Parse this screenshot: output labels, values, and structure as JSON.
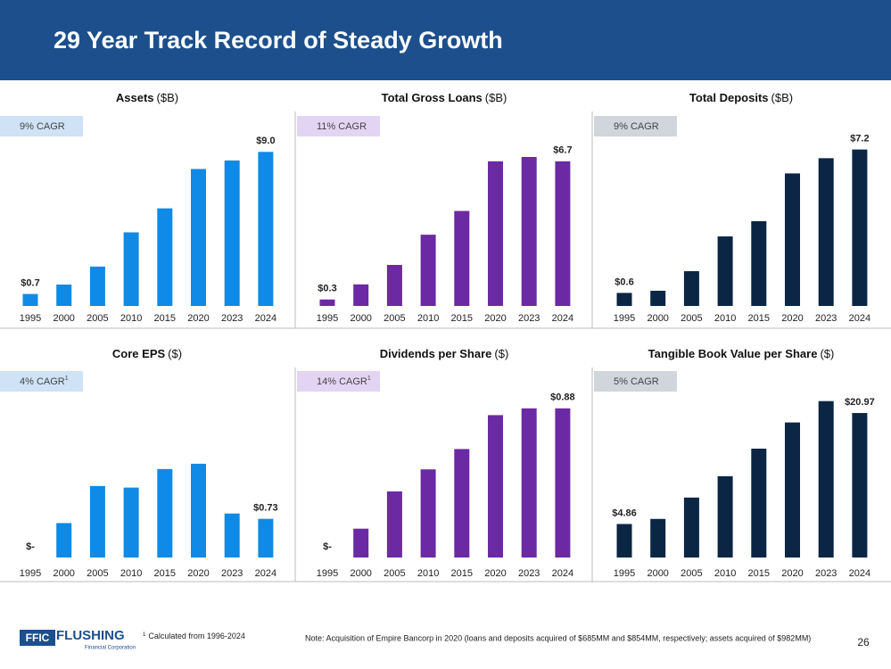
{
  "page": {
    "title": "29 Year Track Record of Steady Growth",
    "logo_mark": "FFIC",
    "logo_name": "FLUSHING",
    "logo_sub": "Financial Corporation",
    "footnote_mark": "1",
    "footnote": "Calculated from 1996-2024",
    "note": "Note: Acquisition of Empire Bancorp in 2020 (loans and deposits acquired of $685MM and $854MM, respectively; assets acquired of $982MM)",
    "page_number": "26"
  },
  "chart_data": [
    {
      "type": "bar",
      "title": "Assets",
      "unit": "($B)",
      "badge": "9% CAGR",
      "badge_color": "#cfe2f6",
      "color": "#0f8ae6",
      "categories": [
        "1995",
        "2000",
        "2005",
        "2010",
        "2015",
        "2020",
        "2023",
        "2024"
      ],
      "values": [
        0.7,
        1.25,
        2.3,
        4.3,
        5.7,
        8.0,
        8.5,
        9.0
      ],
      "value_labels": [
        "$0.7",
        null,
        null,
        null,
        null,
        null,
        null,
        "$9.0"
      ],
      "ylim": [
        0,
        9.9
      ]
    },
    {
      "type": "bar",
      "title": "Total Gross Loans",
      "unit": "($B)",
      "badge": "11% CAGR",
      "badge_color": "#e4d4f4",
      "color": "#6b2aa4",
      "categories": [
        "1995",
        "2000",
        "2005",
        "2010",
        "2015",
        "2020",
        "2023",
        "2024"
      ],
      "values": [
        0.3,
        1.0,
        1.9,
        3.3,
        4.4,
        6.7,
        6.9,
        6.7
      ],
      "value_labels": [
        "$0.3",
        null,
        null,
        null,
        null,
        null,
        null,
        "$6.7"
      ],
      "ylim": [
        0,
        7.85
      ]
    },
    {
      "type": "bar",
      "title": "Total Deposits",
      "unit": "($B)",
      "badge": "9% CAGR",
      "badge_color": "#d0d6dc",
      "color": "#0b2545",
      "categories": [
        "1995",
        "2000",
        "2005",
        "2010",
        "2015",
        "2020",
        "2023",
        "2024"
      ],
      "values": [
        0.6,
        0.7,
        1.6,
        3.2,
        3.9,
        6.1,
        6.8,
        7.2
      ],
      "value_labels": [
        "$0.6",
        null,
        null,
        null,
        null,
        null,
        null,
        "$7.2"
      ],
      "ylim": [
        0,
        7.8
      ]
    },
    {
      "type": "bar",
      "title": "Core EPS",
      "unit": "($)",
      "badge": "4% CAGR",
      "badge_mark": "1",
      "badge_color": "#cfe2f6",
      "color": "#0f8ae6",
      "categories": [
        "1995",
        "2000",
        "2005",
        "2010",
        "2015",
        "2020",
        "2023",
        "2024"
      ],
      "values": [
        0,
        0.65,
        1.35,
        1.32,
        1.67,
        1.77,
        0.83,
        0.73
      ],
      "value_labels": [
        "$-",
        null,
        null,
        null,
        null,
        null,
        null,
        "$0.73"
      ],
      "ylim": [
        0,
        3.2
      ]
    },
    {
      "type": "bar",
      "title": "Dividends per Share",
      "unit": "($)",
      "badge": "14% CAGR",
      "badge_mark": "1",
      "badge_color": "#e4d4f4",
      "color": "#6b2aa4",
      "categories": [
        "1995",
        "2000",
        "2005",
        "2010",
        "2015",
        "2020",
        "2023",
        "2024"
      ],
      "values": [
        0,
        0.17,
        0.39,
        0.52,
        0.64,
        0.84,
        0.88,
        0.88
      ],
      "value_labels": [
        "$-",
        null,
        null,
        null,
        null,
        null,
        null,
        "$0.88"
      ],
      "ylim": [
        0,
        1.0
      ]
    },
    {
      "type": "bar",
      "title": "Tangible Book Value per Share",
      "unit": "($)",
      "badge": "5% CAGR",
      "badge_color": "#d0d6dc",
      "color": "#0b2545",
      "categories": [
        "1995",
        "2000",
        "2005",
        "2010",
        "2015",
        "2020",
        "2023",
        "2024"
      ],
      "values": [
        4.86,
        5.6,
        8.7,
        11.8,
        15.8,
        19.6,
        22.7,
        20.97
      ],
      "value_labels": [
        "$4.86",
        null,
        null,
        null,
        null,
        null,
        null,
        "$20.97"
      ],
      "ylim": [
        0,
        24.6
      ]
    }
  ]
}
